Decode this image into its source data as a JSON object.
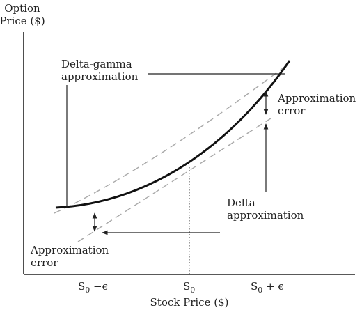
{
  "axes": {
    "y_title_line1": "Option",
    "y_title_line2": "Price ($)",
    "x_title": "Stock Price ($)",
    "ticks": {
      "left": {
        "base": "S",
        "sub": "0",
        "suffix": " −ϵ"
      },
      "center": {
        "base": "S",
        "sub": "0"
      },
      "right": {
        "base": "S",
        "sub": "0",
        "suffix": " + ϵ"
      }
    }
  },
  "annotations": {
    "delta_gamma_line1": "Delta-gamma",
    "delta_gamma_line2": "approximation",
    "approx_error_top_line1": "Approximation",
    "approx_error_top_line2": "error",
    "delta_line1": "Delta",
    "delta_line2": "approximation",
    "approx_error_bottom_line1": "Approximation",
    "approx_error_bottom_line2": "error"
  },
  "colors": {
    "curve": "#111111",
    "approximation": "#a8a8a8",
    "arrow": "#222222"
  }
}
